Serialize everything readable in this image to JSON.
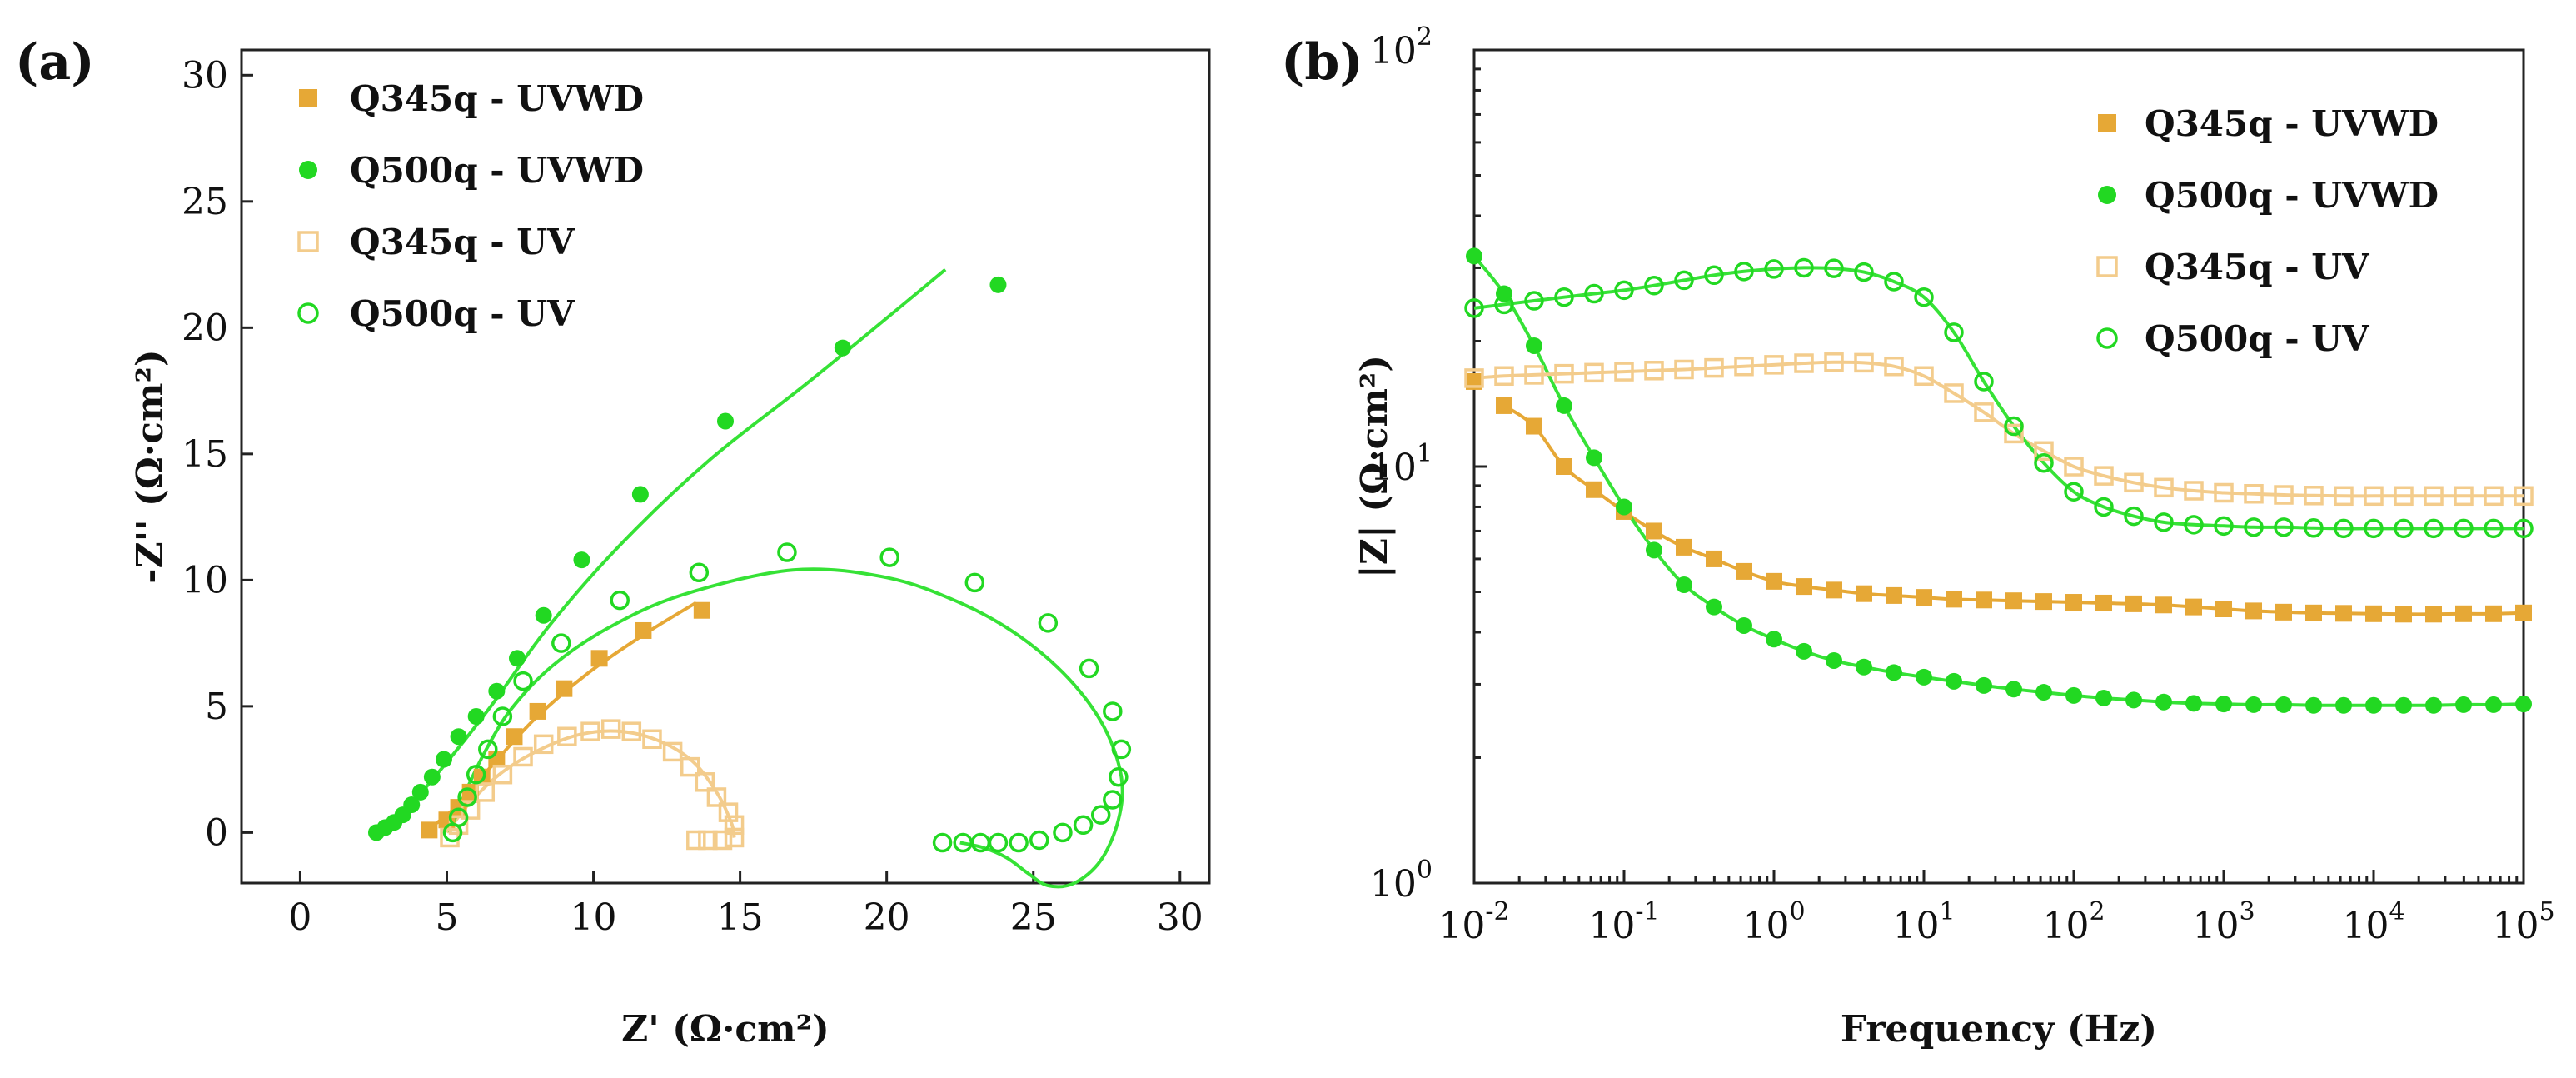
{
  "colors": {
    "orange": "#E6A836",
    "green": "#22D822",
    "orange_light": "#F3CC8C",
    "green_line": "#36E236"
  },
  "chart_data": [
    {
      "panel": "(a)",
      "type": "scatter",
      "xlabel": "Z' (Ω·cm²)",
      "ylabel": "-Z'' (Ω·cm²)",
      "xlim": [
        -2,
        31
      ],
      "ylim": [
        -2,
        31
      ],
      "xticks": [
        0,
        5,
        10,
        15,
        20,
        25,
        30
      ],
      "yticks": [
        0,
        5,
        10,
        15,
        20,
        25,
        30
      ],
      "legend_position": "top-left",
      "series": [
        {
          "name": "Q345q - UVWD",
          "marker": "square-filled",
          "color": "orange",
          "points": [
            [
              4.4,
              0.1
            ],
            [
              5.0,
              0.5
            ],
            [
              5.4,
              1.0
            ],
            [
              5.8,
              1.6
            ],
            [
              6.2,
              2.2
            ],
            [
              6.7,
              2.9
            ],
            [
              7.3,
              3.8
            ],
            [
              8.1,
              4.8
            ],
            [
              9.0,
              5.7
            ],
            [
              10.2,
              6.9
            ],
            [
              11.7,
              8.0
            ],
            [
              13.7,
              8.8
            ]
          ],
          "fit": [
            [
              4.2,
              0.0
            ],
            [
              5.2,
              0.9
            ],
            [
              6.5,
              2.6
            ],
            [
              8.0,
              4.5
            ],
            [
              9.8,
              6.3
            ],
            [
              11.8,
              7.9
            ],
            [
              13.5,
              9.1
            ]
          ]
        },
        {
          "name": "Q500q - UVWD",
          "marker": "circle-filled",
          "color": "green",
          "points": [
            [
              2.6,
              0.0
            ],
            [
              2.9,
              0.2
            ],
            [
              3.2,
              0.4
            ],
            [
              3.5,
              0.7
            ],
            [
              3.8,
              1.1
            ],
            [
              4.1,
              1.6
            ],
            [
              4.5,
              2.2
            ],
            [
              4.9,
              2.9
            ],
            [
              5.4,
              3.8
            ],
            [
              6.0,
              4.6
            ],
            [
              6.7,
              5.6
            ],
            [
              7.4,
              6.9
            ],
            [
              8.3,
              8.6
            ],
            [
              9.6,
              10.8
            ],
            [
              11.6,
              13.4
            ],
            [
              14.5,
              16.3
            ],
            [
              18.5,
              19.2
            ],
            [
              23.8,
              21.7
            ]
          ],
          "fit": [
            [
              2.5,
              0.0
            ],
            [
              3.5,
              0.8
            ],
            [
              4.8,
              2.5
            ],
            [
              6.5,
              5.0
            ],
            [
              8.5,
              8.2
            ],
            [
              11.0,
              11.5
            ],
            [
              14.0,
              14.8
            ],
            [
              17.5,
              18.0
            ],
            [
              22.0,
              22.3
            ]
          ]
        },
        {
          "name": "Q345q - UV",
          "marker": "square-open",
          "color": "orange_light",
          "points": [
            [
              5.1,
              -0.2
            ],
            [
              5.4,
              0.3
            ],
            [
              5.8,
              0.9
            ],
            [
              6.3,
              1.6
            ],
            [
              6.9,
              2.3
            ],
            [
              7.6,
              3.0
            ],
            [
              8.3,
              3.5
            ],
            [
              9.1,
              3.8
            ],
            [
              9.9,
              4.0
            ],
            [
              10.6,
              4.1
            ],
            [
              11.3,
              4.0
            ],
            [
              12.0,
              3.7
            ],
            [
              12.7,
              3.2
            ],
            [
              13.3,
              2.6
            ],
            [
              13.8,
              2.0
            ],
            [
              14.2,
              1.4
            ],
            [
              14.6,
              0.8
            ],
            [
              14.8,
              0.3
            ],
            [
              14.8,
              -0.2
            ],
            [
              14.4,
              -0.3
            ],
            [
              13.9,
              -0.3
            ],
            [
              13.5,
              -0.3
            ]
          ],
          "fit": [
            [
              5.0,
              0.0
            ],
            [
              5.8,
              1.2
            ],
            [
              6.9,
              2.4
            ],
            [
              8.2,
              3.3
            ],
            [
              9.6,
              3.9
            ],
            [
              11.0,
              4.0
            ],
            [
              12.3,
              3.6
            ],
            [
              13.4,
              2.8
            ],
            [
              14.2,
              1.6
            ],
            [
              14.7,
              0.4
            ],
            [
              14.8,
              -0.2
            ]
          ]
        },
        {
          "name": "Q500q - UV",
          "marker": "circle-open",
          "color": "green",
          "points": [
            [
              5.2,
              0.0
            ],
            [
              5.4,
              0.6
            ],
            [
              5.7,
              1.4
            ],
            [
              6.0,
              2.3
            ],
            [
              6.4,
              3.3
            ],
            [
              6.9,
              4.6
            ],
            [
              7.6,
              6.0
            ],
            [
              8.9,
              7.5
            ],
            [
              10.9,
              9.2
            ],
            [
              13.6,
              10.3
            ],
            [
              16.6,
              11.1
            ],
            [
              20.1,
              10.9
            ],
            [
              23.0,
              9.9
            ],
            [
              25.5,
              8.3
            ],
            [
              26.9,
              6.5
            ],
            [
              27.7,
              4.8
            ],
            [
              28.0,
              3.3
            ],
            [
              27.9,
              2.2
            ],
            [
              27.7,
              1.3
            ],
            [
              27.3,
              0.7
            ],
            [
              26.7,
              0.3
            ],
            [
              26.0,
              0.0
            ],
            [
              25.2,
              -0.3
            ],
            [
              24.5,
              -0.4
            ],
            [
              23.8,
              -0.4
            ],
            [
              23.2,
              -0.4
            ],
            [
              22.6,
              -0.4
            ],
            [
              21.9,
              -0.4
            ]
          ],
          "fit": [
            [
              5.1,
              0.0
            ],
            [
              5.6,
              1.5
            ],
            [
              6.3,
              3.2
            ],
            [
              7.2,
              4.9
            ],
            [
              8.6,
              6.6
            ],
            [
              10.5,
              8.1
            ],
            [
              13.0,
              9.4
            ],
            [
              16.8,
              10.4
            ],
            [
              20.0,
              10.1
            ],
            [
              22.5,
              9.1
            ],
            [
              24.5,
              7.8
            ],
            [
              26.2,
              6.1
            ],
            [
              27.4,
              4.2
            ],
            [
              28.0,
              2.2
            ],
            [
              27.9,
              0.5
            ],
            [
              27.3,
              -1.1
            ],
            [
              26.4,
              -2.0
            ],
            [
              25.5,
              -2.1
            ],
            [
              24.8,
              -1.6
            ],
            [
              24.1,
              -1.0
            ],
            [
              23.3,
              -0.6
            ],
            [
              22.5,
              -0.4
            ]
          ]
        }
      ]
    },
    {
      "panel": "(b)",
      "type": "scatter",
      "xscale": "log",
      "yscale": "log",
      "xlabel": "Frequency (Hz)",
      "ylabel": "|Z| (Ω·cm²)",
      "xlim": [
        0.01,
        100000
      ],
      "ylim": [
        1,
        100
      ],
      "xticks": [
        {
          "base": "10",
          "exp": "-2",
          "value": 0.01
        },
        {
          "base": "10",
          "exp": "-1",
          "value": 0.1
        },
        {
          "base": "10",
          "exp": "0",
          "value": 1
        },
        {
          "base": "10",
          "exp": "1",
          "value": 10
        },
        {
          "base": "10",
          "exp": "2",
          "value": 100
        },
        {
          "base": "10",
          "exp": "3",
          "value": 1000
        },
        {
          "base": "10",
          "exp": "4",
          "value": 10000
        },
        {
          "base": "10",
          "exp": "5",
          "value": 100000
        }
      ],
      "yticks": [
        {
          "base": "10",
          "exp": "0",
          "value": 1
        },
        {
          "base": "10",
          "exp": "1",
          "value": 10
        },
        {
          "base": "10",
          "exp": "2",
          "value": 100
        }
      ],
      "legend_position": "top-right",
      "series": [
        {
          "name": "Q345q - UVWD",
          "marker": "square-filled",
          "color": "orange",
          "logf": [
            -2.0,
            -1.8,
            -1.6,
            -1.4,
            -1.2,
            -1.0,
            -0.8,
            -0.6,
            -0.4,
            -0.2,
            0.0,
            0.2,
            0.4,
            0.6,
            0.8,
            1.0,
            1.2,
            1.4,
            1.6,
            1.8,
            2.0,
            2.2,
            2.4,
            2.6,
            2.8,
            3.0,
            3.2,
            3.4,
            3.6,
            3.8,
            4.0,
            4.2,
            4.4,
            4.6,
            4.8,
            5.0
          ],
          "z": [
            16.0,
            14.0,
            12.5,
            10.0,
            8.8,
            7.8,
            7.0,
            6.4,
            6.0,
            5.6,
            5.3,
            5.15,
            5.05,
            4.95,
            4.9,
            4.85,
            4.8,
            4.78,
            4.76,
            4.74,
            4.72,
            4.7,
            4.68,
            4.65,
            4.6,
            4.55,
            4.5,
            4.47,
            4.45,
            4.44,
            4.43,
            4.42,
            4.42,
            4.43,
            4.43,
            4.45
          ],
          "fit_from": 1
        },
        {
          "name": "Q500q - UVWD",
          "marker": "circle-filled",
          "color": "green",
          "logf": [
            -2.0,
            -1.8,
            -1.6,
            -1.4,
            -1.2,
            -1.0,
            -0.8,
            -0.6,
            -0.4,
            -0.2,
            0.0,
            0.2,
            0.4,
            0.6,
            0.8,
            1.0,
            1.2,
            1.4,
            1.6,
            1.8,
            2.0,
            2.2,
            2.4,
            2.6,
            2.8,
            3.0,
            3.2,
            3.4,
            3.6,
            3.8,
            4.0,
            4.2,
            4.4,
            4.6,
            4.8,
            5.0
          ],
          "z": [
            32.0,
            26.0,
            19.5,
            14.0,
            10.5,
            8.0,
            6.3,
            5.2,
            4.6,
            4.15,
            3.85,
            3.6,
            3.42,
            3.3,
            3.2,
            3.12,
            3.05,
            2.98,
            2.92,
            2.87,
            2.82,
            2.78,
            2.75,
            2.72,
            2.7,
            2.69,
            2.68,
            2.68,
            2.67,
            2.67,
            2.67,
            2.67,
            2.67,
            2.68,
            2.68,
            2.69
          ],
          "fit_from": 0
        },
        {
          "name": "Q345q - UV",
          "marker": "square-open",
          "color": "orange_light",
          "logf": [
            -2.0,
            -1.8,
            -1.6,
            -1.4,
            -1.2,
            -1.0,
            -0.8,
            -0.6,
            -0.4,
            -0.2,
            0.0,
            0.2,
            0.4,
            0.6,
            0.8,
            1.0,
            1.2,
            1.4,
            1.6,
            1.8,
            2.0,
            2.2,
            2.4,
            2.6,
            2.8,
            3.0,
            3.2,
            3.4,
            3.6,
            3.8,
            4.0,
            4.2,
            4.4,
            4.6,
            4.8,
            5.0
          ],
          "z": [
            16.3,
            16.5,
            16.6,
            16.7,
            16.8,
            16.9,
            17.0,
            17.1,
            17.25,
            17.4,
            17.55,
            17.7,
            17.8,
            17.75,
            17.4,
            16.5,
            15.0,
            13.5,
            12.0,
            10.9,
            10.0,
            9.5,
            9.15,
            8.9,
            8.75,
            8.65,
            8.6,
            8.55,
            8.52,
            8.5,
            8.5,
            8.5,
            8.5,
            8.5,
            8.5,
            8.5
          ],
          "fit_from": 0
        },
        {
          "name": "Q500q - UV",
          "marker": "circle-open",
          "color": "green",
          "logf": [
            -2.0,
            -1.8,
            -1.6,
            -1.4,
            -1.2,
            -1.0,
            -0.8,
            -0.6,
            -0.4,
            -0.2,
            0.0,
            0.2,
            0.4,
            0.6,
            0.8,
            1.0,
            1.2,
            1.4,
            1.6,
            1.8,
            2.0,
            2.2,
            2.4,
            2.6,
            2.8,
            3.0,
            3.2,
            3.4,
            3.6,
            3.8,
            4.0,
            4.2,
            4.4,
            4.6,
            4.8,
            5.0
          ],
          "z": [
            24.0,
            24.5,
            25.0,
            25.5,
            26.0,
            26.5,
            27.2,
            28.0,
            28.8,
            29.4,
            29.8,
            30.0,
            29.9,
            29.3,
            27.8,
            25.5,
            21.0,
            16.0,
            12.5,
            10.2,
            8.7,
            8.0,
            7.6,
            7.35,
            7.25,
            7.2,
            7.15,
            7.15,
            7.12,
            7.1,
            7.1,
            7.1,
            7.1,
            7.1,
            7.1,
            7.1
          ],
          "fit_from": 0
        }
      ]
    }
  ]
}
